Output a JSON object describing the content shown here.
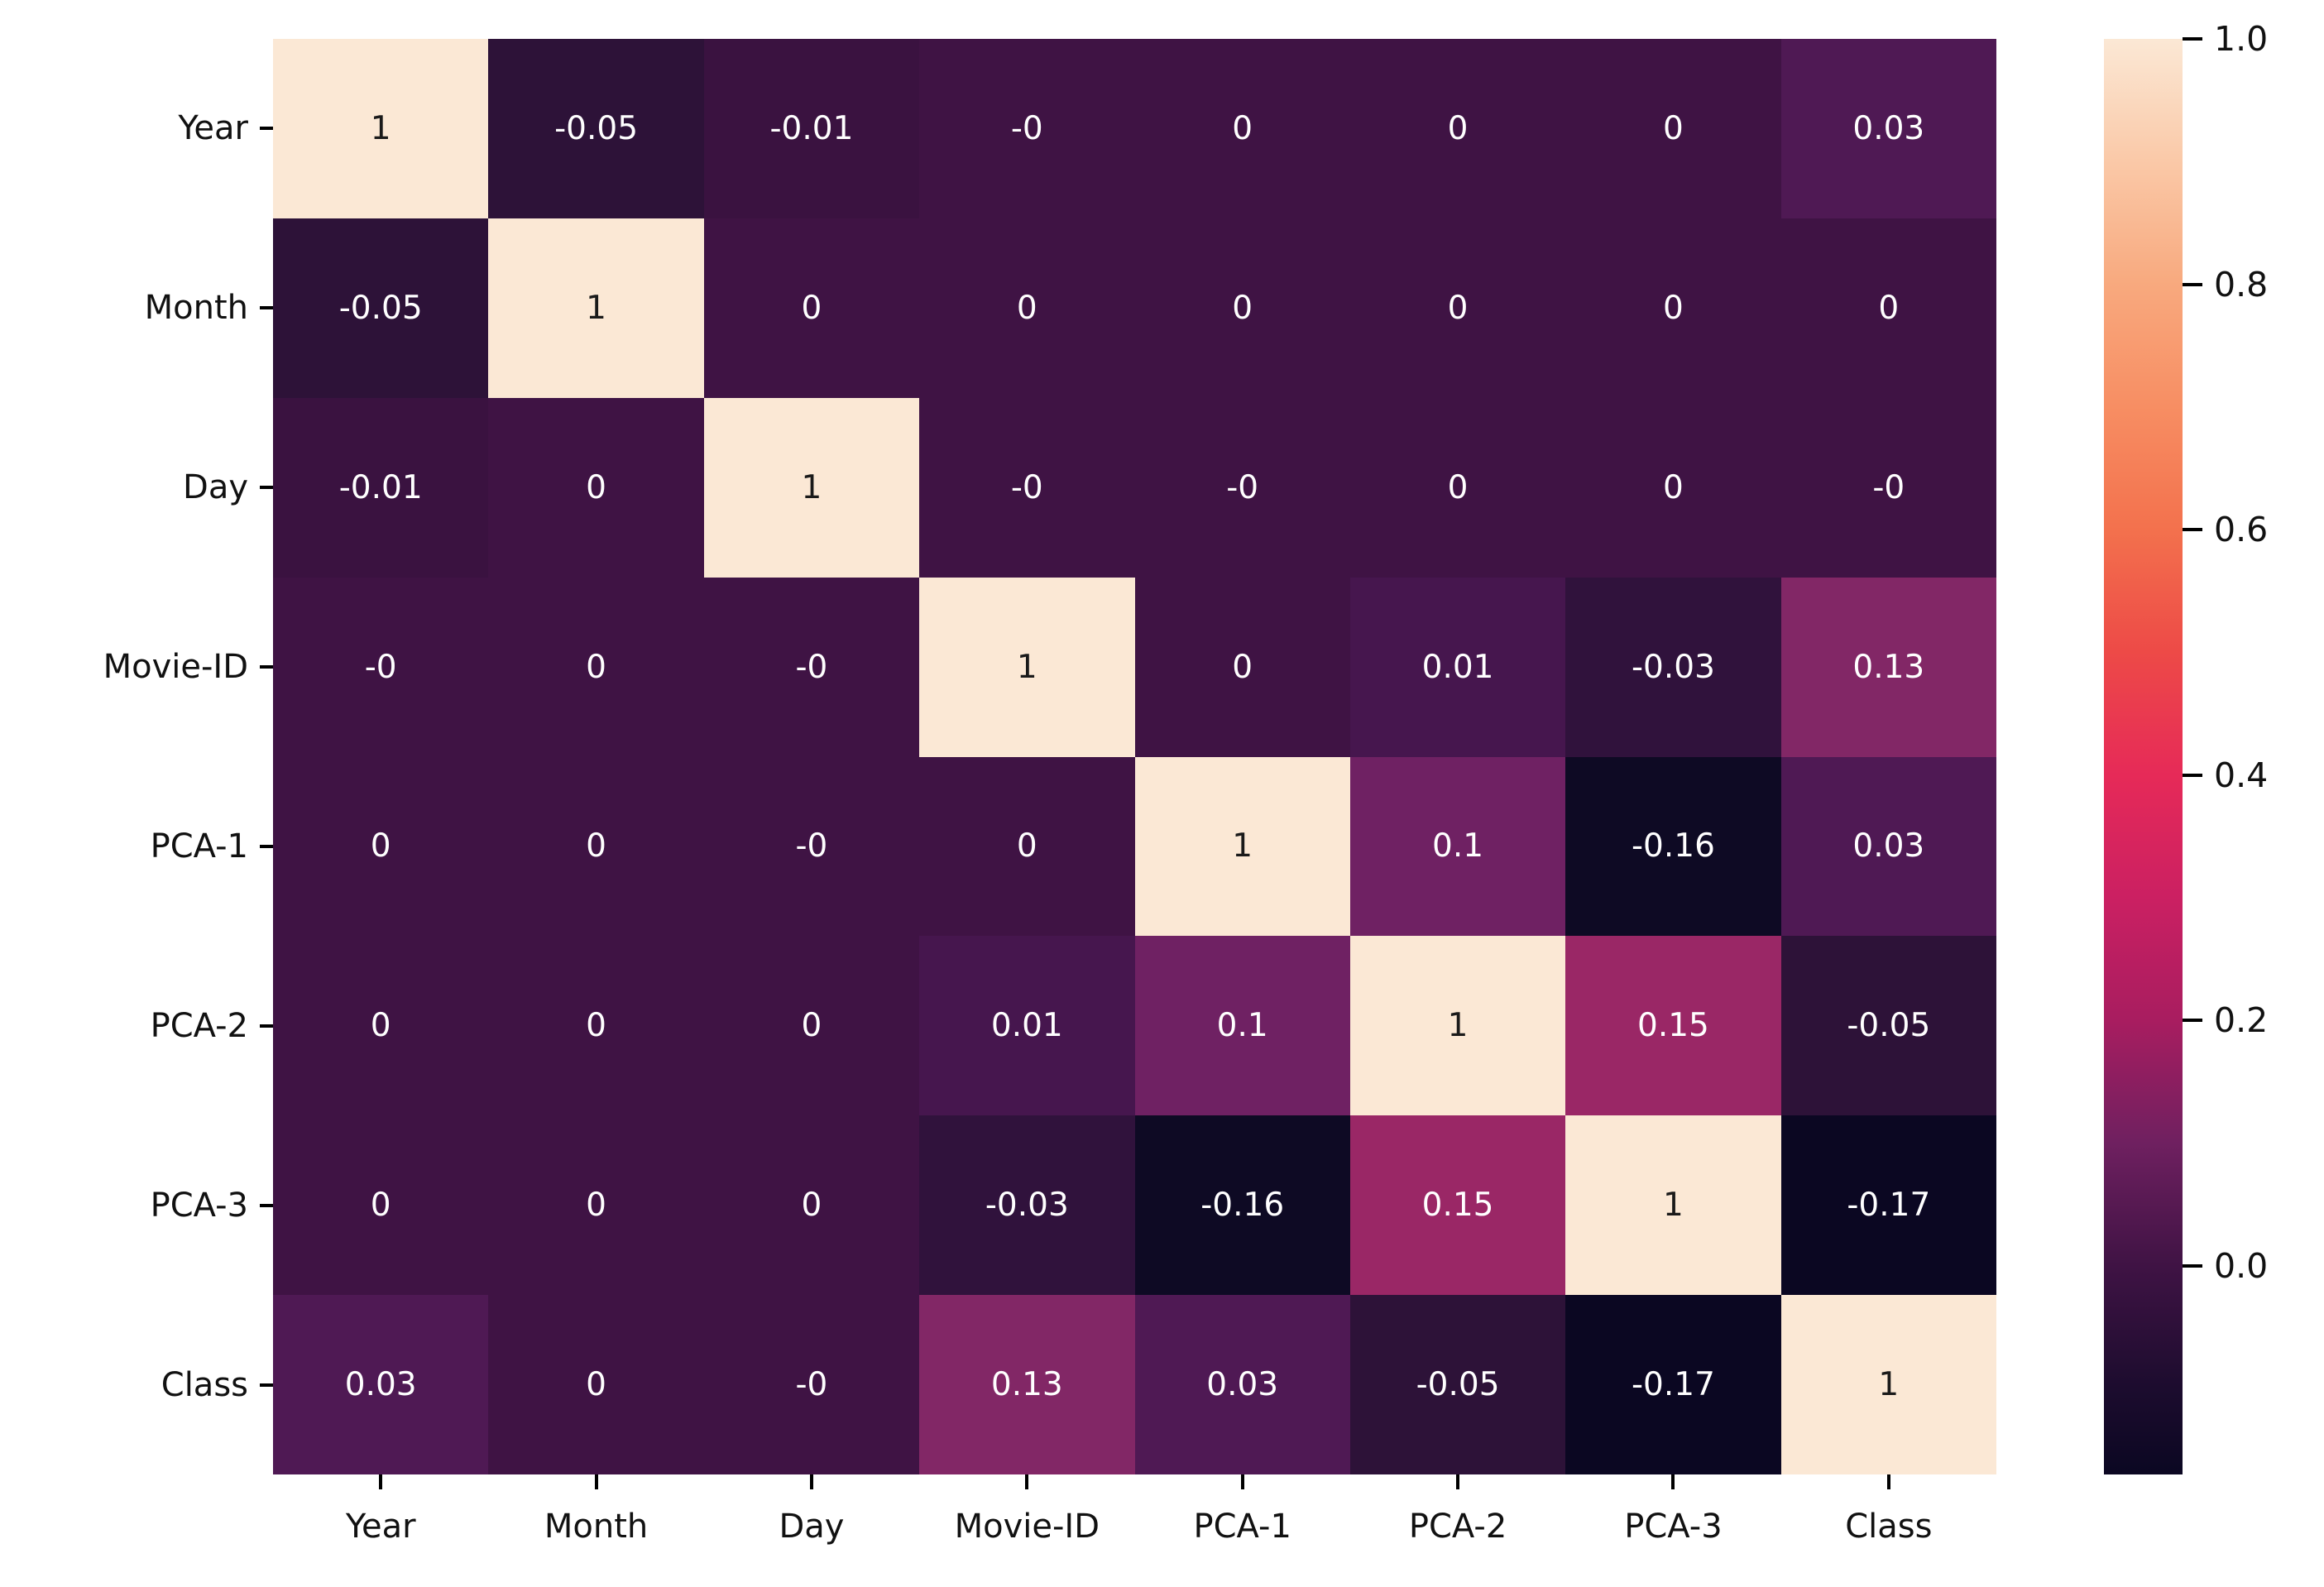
{
  "chart_data": {
    "type": "heatmap",
    "title": "",
    "xlabel": "",
    "ylabel": "",
    "categories": [
      "Year",
      "Month",
      "Day",
      "Movie-ID",
      "PCA-1",
      "PCA-2",
      "PCA-3",
      "Class"
    ],
    "cells": [
      [
        "1",
        "-0.05",
        "-0.01",
        "-0",
        "0",
        "0",
        "0",
        "0.03"
      ],
      [
        "-0.05",
        "1",
        "0",
        "0",
        "0",
        "0",
        "0",
        "0"
      ],
      [
        "-0.01",
        "0",
        "1",
        "-0",
        "-0",
        "0",
        "0",
        "-0"
      ],
      [
        "-0",
        "0",
        "-0",
        "1",
        "0",
        "0.01",
        "-0.03",
        "0.13"
      ],
      [
        "0",
        "0",
        "-0",
        "0",
        "1",
        "0.1",
        "-0.16",
        "0.03"
      ],
      [
        "0",
        "0",
        "0",
        "0.01",
        "0.1",
        "1",
        "0.15",
        "-0.05"
      ],
      [
        "0",
        "0",
        "0",
        "-0.03",
        "-0.16",
        "0.15",
        "1",
        "-0.17"
      ],
      [
        "0.03",
        "0",
        "-0",
        "0.13",
        "0.03",
        "-0.05",
        "-0.17",
        "1"
      ]
    ],
    "cell_colors": {
      "1": "#fbe8d5",
      "0.15": "#9a2766",
      "0.13": "#822766",
      "0.1": "#6f2163",
      "0.03": "#4f1954",
      "0.01": "#46164e",
      "0": "#3f1344",
      "-0": "#3f1344",
      "-0.01": "#3a1240",
      "-0.03": "#30123c",
      "-0.05": "#2d1238",
      "-0.16": "#0e0a24",
      "-0.17": "#0b0722"
    },
    "annotation_color_light": "#ffffff",
    "annotation_color_dark": "#1a1a1a",
    "colorbar": {
      "vmin": -0.17,
      "vmax": 1.0,
      "tick_labels": [
        "1.0",
        "0.8",
        "0.6",
        "0.4",
        "0.2",
        "0.0"
      ],
      "tick_values": [
        1.0,
        0.8,
        0.6,
        0.4,
        0.2,
        0.0
      ],
      "gradient_stops": [
        {
          "pos": 0.0,
          "color": "#fbe8d5"
        },
        {
          "pos": 8.5,
          "color": "#fac9a8"
        },
        {
          "pos": 17.1,
          "color": "#f8a97e"
        },
        {
          "pos": 25.6,
          "color": "#f78e63"
        },
        {
          "pos": 34.2,
          "color": "#f3714d"
        },
        {
          "pos": 42.7,
          "color": "#ed4a47"
        },
        {
          "pos": 51.3,
          "color": "#e62a58"
        },
        {
          "pos": 59.8,
          "color": "#cb2062"
        },
        {
          "pos": 68.4,
          "color": "#a81d60"
        },
        {
          "pos": 76.9,
          "color": "#6f2060"
        },
        {
          "pos": 85.5,
          "color": "#3f1344"
        },
        {
          "pos": 94.0,
          "color": "#1c0c2e"
        },
        {
          "pos": 100.0,
          "color": "#0b0722"
        }
      ]
    },
    "legend_position": "right",
    "grid": false
  }
}
